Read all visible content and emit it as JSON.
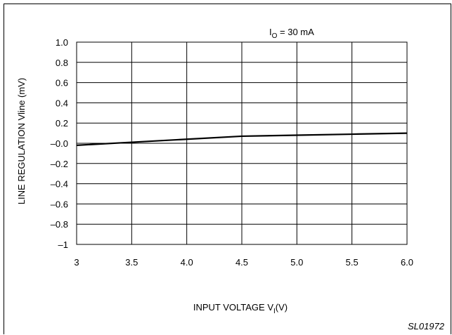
{
  "chart_data": {
    "type": "line",
    "title": "",
    "annotation": {
      "main": "I",
      "sub": "O",
      "rest": " = 30 mA"
    },
    "xlabel": {
      "main": "INPUT VOLTAGE V",
      "sub": "I",
      "rest": "(V)"
    },
    "ylabel": "LINE REGULATION Vline (mV)",
    "xlim": [
      3,
      6
    ],
    "ylim": [
      -1,
      1
    ],
    "xticks": [
      3,
      3.5,
      4,
      4.5,
      5,
      5.5,
      6
    ],
    "xtick_labels": [
      "3",
      "3.5",
      "4.0",
      "4.5",
      "5.0",
      "5.5",
      "6.0"
    ],
    "yticks": [
      1,
      0.8,
      0.6,
      0.4,
      0.2,
      0,
      -0.2,
      -0.4,
      -0.6,
      -0.8,
      -1
    ],
    "ytick_labels": [
      "1.0",
      "0.8",
      "0.6",
      "0.4",
      "0.2",
      "–0.0",
      "–0.2",
      "–0.4",
      "–0.6",
      "–0.8",
      "–1"
    ],
    "grid": true,
    "series": [
      {
        "x": [
          3.0,
          3.5,
          4.0,
          4.5,
          5.0,
          5.5,
          6.0
        ],
        "y": [
          -0.02,
          0.01,
          0.04,
          0.07,
          0.08,
          0.09,
          0.1
        ]
      }
    ],
    "figure_id": "SL01972"
  },
  "colors": {
    "line": "#000000",
    "grid": "#000000",
    "background": "#ffffff"
  }
}
